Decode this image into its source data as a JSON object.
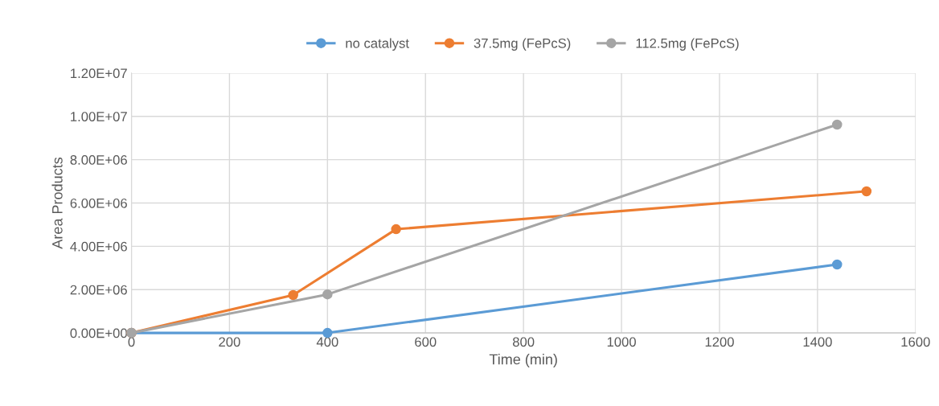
{
  "chart_data": {
    "type": "line",
    "xlabel": "Time (min)",
    "ylabel": "Area Products",
    "series": [
      {
        "name": "no catalyst",
        "color": "#5b9bd5",
        "x": [
          0,
          400,
          1440
        ],
        "values": [
          0,
          0,
          3160000
        ]
      },
      {
        "name": "37.5mg (FePcS)",
        "color": "#ed7d31",
        "x": [
          0,
          330,
          540,
          1500
        ],
        "values": [
          0,
          1750000,
          4790000,
          6540000
        ]
      },
      {
        "name": "112.5mg (FePcS)",
        "color": "#a5a5a5",
        "x": [
          0,
          400,
          1440
        ],
        "values": [
          0,
          1780000,
          9620000
        ]
      }
    ],
    "xlim": [
      0,
      1600
    ],
    "xticks": [
      0,
      200,
      400,
      600,
      800,
      1000,
      1200,
      1400,
      1600
    ],
    "ylim": [
      0,
      12000000
    ],
    "yticks": [
      {
        "value": 0,
        "label": "0.00E+00"
      },
      {
        "value": 2000000,
        "label": "2.00E+06"
      },
      {
        "value": 4000000,
        "label": "4.00E+06"
      },
      {
        "value": 6000000,
        "label": "6.00E+06"
      },
      {
        "value": 8000000,
        "label": "8.00E+06"
      },
      {
        "value": 10000000,
        "label": "1.00E+07"
      },
      {
        "value": 12000000,
        "label": "1.20E+07"
      }
    ],
    "grid": true,
    "legend": "top",
    "marker": "circle",
    "line_style": "solid"
  }
}
